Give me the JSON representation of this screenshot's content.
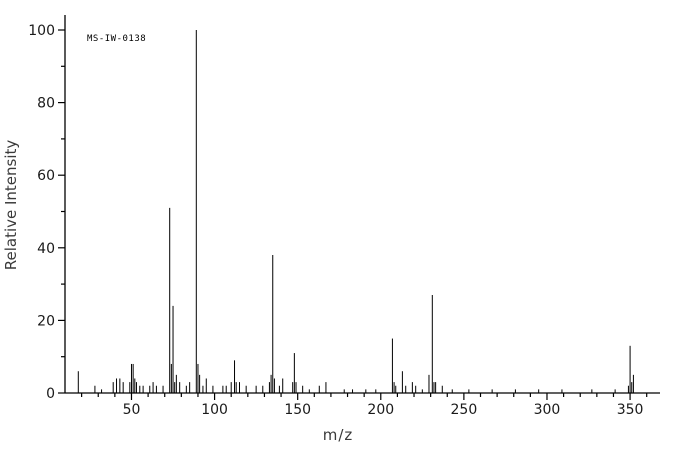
{
  "chart_data": {
    "type": "bar",
    "subtype": "mass-spectrum",
    "title": "",
    "annotation": "MS-IW-0138",
    "xlabel": "m/z",
    "ylabel": "Relative Intensity",
    "xlim": [
      10,
      368
    ],
    "ylim": [
      0,
      100
    ],
    "x_major_ticks": [
      50,
      100,
      150,
      200,
      250,
      300,
      350
    ],
    "x_minor_step": 10,
    "y_major_ticks": [
      0,
      20,
      40,
      60,
      80,
      100
    ],
    "y_minor_step": 10,
    "grid": false,
    "legend": false,
    "axis_color": "#000000",
    "peak_color": "#000000",
    "peaks": [
      [
        18,
        6
      ],
      [
        28,
        2
      ],
      [
        32,
        1
      ],
      [
        39,
        3
      ],
      [
        41,
        4
      ],
      [
        43,
        4
      ],
      [
        45,
        3
      ],
      [
        49,
        3
      ],
      [
        50,
        8
      ],
      [
        51,
        8
      ],
      [
        52,
        4
      ],
      [
        53,
        3
      ],
      [
        55,
        2
      ],
      [
        57,
        2
      ],
      [
        61,
        2
      ],
      [
        63,
        3
      ],
      [
        65,
        2
      ],
      [
        69,
        2
      ],
      [
        73,
        51
      ],
      [
        74,
        8
      ],
      [
        75,
        24
      ],
      [
        76,
        3
      ],
      [
        77,
        5
      ],
      [
        79,
        3
      ],
      [
        83,
        2
      ],
      [
        85,
        3
      ],
      [
        89,
        100
      ],
      [
        90,
        8
      ],
      [
        91,
        5
      ],
      [
        93,
        2
      ],
      [
        95,
        4
      ],
      [
        99,
        2
      ],
      [
        105,
        2
      ],
      [
        107,
        2
      ],
      [
        110,
        3
      ],
      [
        112,
        9
      ],
      [
        113,
        3
      ],
      [
        115,
        3
      ],
      [
        119,
        2
      ],
      [
        125,
        2
      ],
      [
        129,
        2
      ],
      [
        133,
        3
      ],
      [
        134,
        5
      ],
      [
        135,
        38
      ],
      [
        136,
        4
      ],
      [
        139,
        2
      ],
      [
        141,
        4
      ],
      [
        147,
        3
      ],
      [
        148,
        11
      ],
      [
        149,
        3
      ],
      [
        153,
        2
      ],
      [
        157,
        1
      ],
      [
        163,
        2
      ],
      [
        167,
        3
      ],
      [
        178,
        1
      ],
      [
        183,
        1
      ],
      [
        191,
        1
      ],
      [
        197,
        1
      ],
      [
        207,
        15
      ],
      [
        208,
        3
      ],
      [
        209,
        2
      ],
      [
        213,
        6
      ],
      [
        215,
        2
      ],
      [
        219,
        3
      ],
      [
        221,
        2
      ],
      [
        225,
        1
      ],
      [
        229,
        5
      ],
      [
        231,
        27
      ],
      [
        232,
        3
      ],
      [
        233,
        3
      ],
      [
        237,
        2
      ],
      [
        243,
        1
      ],
      [
        253,
        1
      ],
      [
        267,
        1
      ],
      [
        281,
        1
      ],
      [
        295,
        1
      ],
      [
        309,
        1
      ],
      [
        327,
        1
      ],
      [
        341,
        1
      ],
      [
        349,
        2
      ],
      [
        350,
        13
      ],
      [
        351,
        3
      ],
      [
        352,
        5
      ]
    ]
  }
}
